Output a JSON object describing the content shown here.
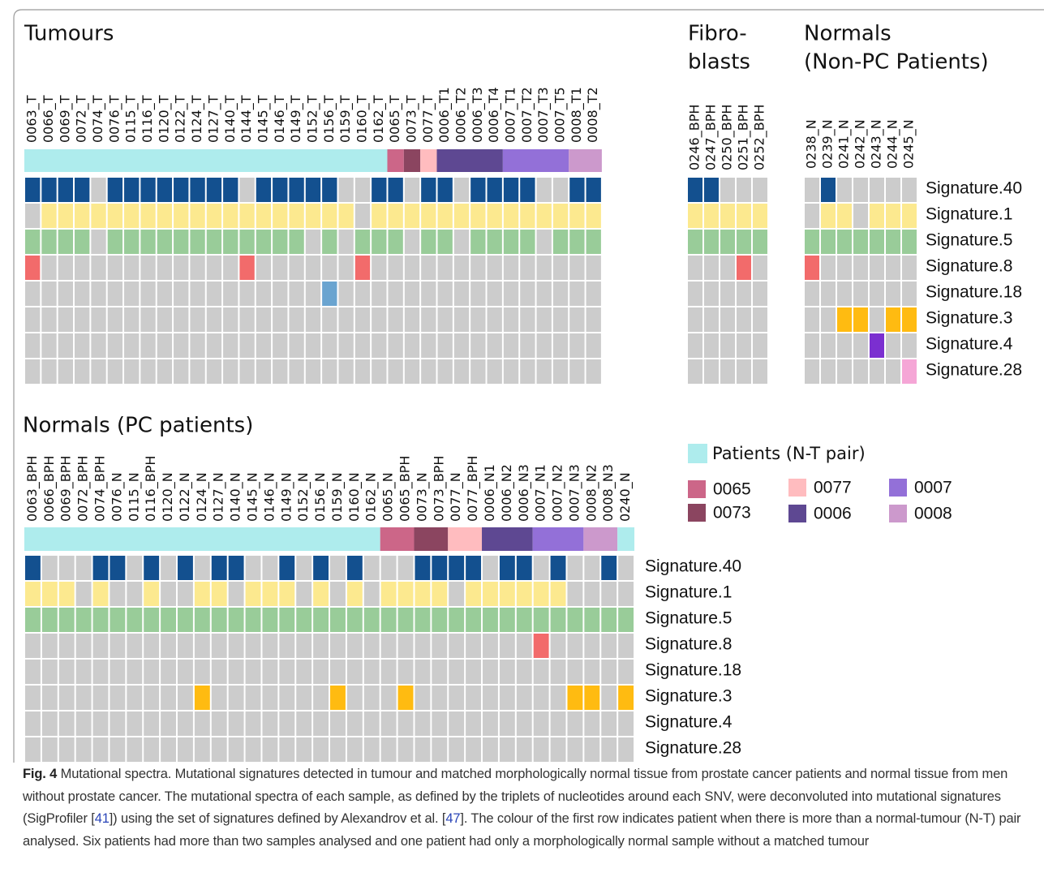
{
  "panels": [
    {
      "title": [
        "Tumours"
      ],
      "samples": [
        "0063_T",
        "0066_T",
        "0069_T",
        "0072_T",
        "0074_T",
        "0076_T",
        "0115_T",
        "0116_T",
        "0120_T",
        "0122_T",
        "0124_T",
        "0127_T",
        "0140_T",
        "0144_T",
        "0145_T",
        "0146_T",
        "0149_T",
        "0152_T",
        "0156_T",
        "0159_T",
        "0160_T",
        "0162_T",
        "0065_T",
        "0073_T",
        "0077_T",
        "0006_T1",
        "0006_T2",
        "0006_T3",
        "0006_T4",
        "0007_T1",
        "0007_T2",
        "0007_T3",
        "0007_T5",
        "0008_T1",
        "0008_T2"
      ],
      "patient_bar": [
        {
          "color": "#aeeced",
          "samples": 22
        },
        {
          "color": "#cc6688",
          "samples": 1
        },
        {
          "color": "#8b4560",
          "samples": 1
        },
        {
          "color": "#ffbcbf",
          "samples": 1
        },
        {
          "color": "#5e4892",
          "samples": 4
        },
        {
          "color": "#9370d8",
          "samples": 4
        },
        {
          "color": "#cc99cc",
          "samples": 2
        }
      ],
      "rows": [
        {
          "color": "#13508f",
          "values": [
            1,
            1,
            1,
            1,
            0,
            1,
            1,
            1,
            1,
            1,
            1,
            1,
            1,
            0,
            1,
            1,
            1,
            1,
            1,
            0,
            0,
            1,
            1,
            0,
            1,
            1,
            0,
            1,
            1,
            1,
            1,
            0,
            0,
            1,
            1
          ]
        },
        {
          "color": "#fce98f",
          "values": [
            0,
            1,
            1,
            1,
            1,
            1,
            1,
            1,
            1,
            1,
            1,
            1,
            1,
            1,
            1,
            1,
            1,
            1,
            1,
            1,
            0,
            1,
            1,
            1,
            1,
            1,
            1,
            1,
            1,
            1,
            1,
            1,
            1,
            1,
            1
          ]
        },
        {
          "color": "#99cc99",
          "values": [
            1,
            1,
            1,
            1,
            0,
            1,
            1,
            1,
            1,
            1,
            1,
            1,
            1,
            1,
            1,
            1,
            1,
            0,
            1,
            0,
            1,
            1,
            1,
            0,
            1,
            1,
            0,
            1,
            1,
            1,
            1,
            0,
            1,
            1,
            1
          ]
        },
        {
          "color": "#f26b6b",
          "values": [
            1,
            0,
            0,
            0,
            0,
            0,
            0,
            0,
            0,
            0,
            0,
            0,
            0,
            1,
            0,
            0,
            0,
            0,
            0,
            0,
            1,
            0,
            0,
            0,
            0,
            0,
            0,
            0,
            0,
            0,
            0,
            0,
            0,
            0,
            0
          ]
        },
        {
          "color": "#6aa4d0",
          "values": [
            0,
            0,
            0,
            0,
            0,
            0,
            0,
            0,
            0,
            0,
            0,
            0,
            0,
            0,
            0,
            0,
            0,
            0,
            1,
            0,
            0,
            0,
            0,
            0,
            0,
            0,
            0,
            0,
            0,
            0,
            0,
            0,
            0,
            0,
            0
          ]
        },
        {
          "color": "#ffbb11",
          "values": [
            0,
            0,
            0,
            0,
            0,
            0,
            0,
            0,
            0,
            0,
            0,
            0,
            0,
            0,
            0,
            0,
            0,
            0,
            0,
            0,
            0,
            0,
            0,
            0,
            0,
            0,
            0,
            0,
            0,
            0,
            0,
            0,
            0,
            0,
            0
          ]
        },
        {
          "color": "#7b2fd0",
          "values": [
            0,
            0,
            0,
            0,
            0,
            0,
            0,
            0,
            0,
            0,
            0,
            0,
            0,
            0,
            0,
            0,
            0,
            0,
            0,
            0,
            0,
            0,
            0,
            0,
            0,
            0,
            0,
            0,
            0,
            0,
            0,
            0,
            0,
            0,
            0
          ]
        },
        {
          "color": "#f5a6d6",
          "values": [
            0,
            0,
            0,
            0,
            0,
            0,
            0,
            0,
            0,
            0,
            0,
            0,
            0,
            0,
            0,
            0,
            0,
            0,
            0,
            0,
            0,
            0,
            0,
            0,
            0,
            0,
            0,
            0,
            0,
            0,
            0,
            0,
            0,
            0,
            0
          ]
        }
      ]
    },
    {
      "title": [
        "Fibro-",
        "blasts"
      ],
      "samples": [
        "0246_BPH",
        "0247_BPH",
        "0250_BPH",
        "0251_BPH",
        "0252_BPH"
      ],
      "rows": [
        {
          "color": "#13508f",
          "values": [
            1,
            1,
            0,
            0,
            0
          ]
        },
        {
          "color": "#fce98f",
          "values": [
            1,
            1,
            1,
            1,
            1
          ]
        },
        {
          "color": "#99cc99",
          "values": [
            1,
            1,
            1,
            1,
            1
          ]
        },
        {
          "color": "#f26b6b",
          "values": [
            0,
            0,
            0,
            1,
            0
          ]
        },
        {
          "color": "#6aa4d0",
          "values": [
            0,
            0,
            0,
            0,
            0
          ]
        },
        {
          "color": "#ffbb11",
          "values": [
            0,
            0,
            0,
            0,
            0
          ]
        },
        {
          "color": "#7b2fd0",
          "values": [
            0,
            0,
            0,
            0,
            0
          ]
        },
        {
          "color": "#f5a6d6",
          "values": [
            0,
            0,
            0,
            0,
            0
          ]
        }
      ]
    },
    {
      "title": [
        "Normals",
        "(Non-PC Patients)"
      ],
      "samples": [
        "0238_N",
        "0239_N",
        "0241_N",
        "0242_N",
        "0243_N",
        "0244_N",
        "0245_N"
      ],
      "rows": [
        {
          "signature": "Signature.40",
          "color": "#13508f",
          "values": [
            0,
            1,
            0,
            0,
            0,
            0,
            0
          ]
        },
        {
          "signature": "Signature.1",
          "color": "#fce98f",
          "values": [
            0,
            1,
            1,
            0,
            1,
            1,
            1
          ]
        },
        {
          "signature": "Signature.5",
          "color": "#99cc99",
          "values": [
            1,
            1,
            1,
            1,
            1,
            1,
            1
          ]
        },
        {
          "signature": "Signature.8",
          "color": "#f26b6b",
          "values": [
            1,
            0,
            0,
            0,
            0,
            0,
            0
          ]
        },
        {
          "signature": "Signature.18",
          "color": "#6aa4d0",
          "values": [
            0,
            0,
            0,
            0,
            0,
            0,
            0
          ]
        },
        {
          "signature": "Signature.3",
          "color": "#ffbb11",
          "values": [
            0,
            0,
            1,
            1,
            0,
            1,
            1
          ]
        },
        {
          "signature": "Signature.4",
          "color": "#7b2fd0",
          "values": [
            0,
            0,
            0,
            0,
            1,
            0,
            0
          ]
        },
        {
          "signature": "Signature.28",
          "color": "#f5a6d6",
          "values": [
            0,
            0,
            0,
            0,
            0,
            0,
            1
          ]
        }
      ]
    },
    {
      "title": [
        "Normals (PC patients)"
      ],
      "samples": [
        "0063_BPH",
        "0066_BPH",
        "0069_BPH",
        "0072_BPH",
        "0074_BPH",
        "0076_N",
        "0115_N",
        "0116_BPH",
        "0120_N",
        "0122_N",
        "0124_N",
        "0127_N",
        "0140_N",
        "0145_N",
        "0146_N",
        "0149_N",
        "0152_N",
        "0156_N",
        "0159_N",
        "0160_N",
        "0162_N",
        "0065_N",
        "0065_BPH",
        "0073_N",
        "0073_BPH",
        "0077_N",
        "0077_BPH",
        "0006_N1",
        "0006_N2",
        "0006_N3",
        "0007_N1",
        "0007_N2",
        "0007_N3",
        "0008_N2",
        "0008_N3",
        "0240_N"
      ],
      "patient_bar": [
        {
          "color": "#aeeced",
          "samples": 21
        },
        {
          "color": "#cc6688",
          "samples": 2
        },
        {
          "color": "#8b4560",
          "samples": 2
        },
        {
          "color": "#ffbcbf",
          "samples": 2
        },
        {
          "color": "#5e4892",
          "samples": 3
        },
        {
          "color": "#9370d8",
          "samples": 3
        },
        {
          "color": "#cc99cc",
          "samples": 2
        },
        {
          "color": "#aeeced",
          "samples": 1
        }
      ],
      "rows": [
        {
          "signature": "Signature.40",
          "color": "#13508f",
          "values": [
            1,
            0,
            0,
            0,
            1,
            1,
            0,
            1,
            0,
            1,
            0,
            1,
            1,
            0,
            0,
            1,
            0,
            1,
            0,
            1,
            0,
            0,
            0,
            1,
            1,
            1,
            1,
            0,
            1,
            1,
            0,
            1,
            0,
            0,
            1,
            0
          ]
        },
        {
          "signature": "Signature.1",
          "color": "#fce98f",
          "values": [
            1,
            1,
            1,
            0,
            1,
            0,
            0,
            1,
            0,
            0,
            1,
            1,
            0,
            1,
            1,
            1,
            0,
            1,
            0,
            1,
            0,
            1,
            1,
            1,
            1,
            0,
            1,
            1,
            1,
            1,
            1,
            1,
            0,
            0,
            0,
            0
          ]
        },
        {
          "signature": "Signature.5",
          "color": "#99cc99",
          "values": [
            1,
            1,
            1,
            1,
            1,
            1,
            1,
            1,
            1,
            1,
            1,
            1,
            1,
            1,
            1,
            1,
            1,
            1,
            1,
            1,
            1,
            1,
            1,
            1,
            1,
            1,
            1,
            1,
            1,
            1,
            1,
            1,
            1,
            1,
            1,
            1
          ]
        },
        {
          "signature": "Signature.8",
          "color": "#f26b6b",
          "values": [
            0,
            0,
            0,
            0,
            0,
            0,
            0,
            0,
            0,
            0,
            0,
            0,
            0,
            0,
            0,
            0,
            0,
            0,
            0,
            0,
            0,
            0,
            0,
            0,
            0,
            0,
            0,
            0,
            0,
            0,
            1,
            0,
            0,
            0,
            0,
            0
          ]
        },
        {
          "signature": "Signature.18",
          "color": "#6aa4d0",
          "values": [
            0,
            0,
            0,
            0,
            0,
            0,
            0,
            0,
            0,
            0,
            0,
            0,
            0,
            0,
            0,
            0,
            0,
            0,
            0,
            0,
            0,
            0,
            0,
            0,
            0,
            0,
            0,
            0,
            0,
            0,
            0,
            0,
            0,
            0,
            0,
            0
          ]
        },
        {
          "signature": "Signature.3",
          "color": "#ffbb11",
          "values": [
            0,
            0,
            0,
            0,
            0,
            0,
            0,
            0,
            0,
            0,
            1,
            0,
            0,
            0,
            0,
            0,
            0,
            0,
            1,
            0,
            0,
            0,
            1,
            0,
            0,
            0,
            0,
            0,
            0,
            0,
            0,
            0,
            1,
            1,
            0,
            1
          ]
        },
        {
          "signature": "Signature.4",
          "color": "#7b2fd0",
          "values": [
            0,
            0,
            0,
            0,
            0,
            0,
            0,
            0,
            0,
            0,
            0,
            0,
            0,
            0,
            0,
            0,
            0,
            0,
            0,
            0,
            0,
            0,
            0,
            0,
            0,
            0,
            0,
            0,
            0,
            0,
            0,
            0,
            0,
            0,
            0,
            0
          ]
        },
        {
          "signature": "Signature.28",
          "color": "#f5a6d6",
          "values": [
            0,
            0,
            0,
            0,
            0,
            0,
            0,
            0,
            0,
            0,
            0,
            0,
            0,
            0,
            0,
            0,
            0,
            0,
            0,
            0,
            0,
            0,
            0,
            0,
            0,
            0,
            0,
            0,
            0,
            0,
            0,
            0,
            0,
            0,
            0,
            0
          ]
        }
      ]
    }
  ],
  "absent_color": "#cccccc",
  "legend": {
    "title": "Patients (N-T pair)",
    "title_color": "#aeeced",
    "items": [
      {
        "label": "0065",
        "color": "#cc6688"
      },
      {
        "label": "0073",
        "color": "#8b4560"
      },
      {
        "label": "0077",
        "color": "#ffbcbf"
      },
      {
        "label": "0006",
        "color": "#5e4892"
      },
      {
        "label": "0007",
        "color": "#9370d8"
      },
      {
        "label": "0008",
        "color": "#cc99cc"
      }
    ]
  },
  "caption": {
    "label": "Fig. 4",
    "parts": [
      "Mutational spectra. Mutational signatures detected in tumour and matched morphologically normal tissue from prostate cancer patients and normal tissue from men without prostate cancer. The mutational spectra of each sample, as defined by the triplets of nucleotides around each SNV, were deconvoluted into mutational signatures (SigProfiler [",
      "41",
      "]) using the set of signatures defined by Alexandrov et al. [",
      "47",
      "]. The colour of the first row indicates patient when there is more than a normal-tumour (N-T) pair analysed. Six patients had more than two samples analysed and one patient had only a morphologically normal sample without a matched tumour"
    ]
  }
}
